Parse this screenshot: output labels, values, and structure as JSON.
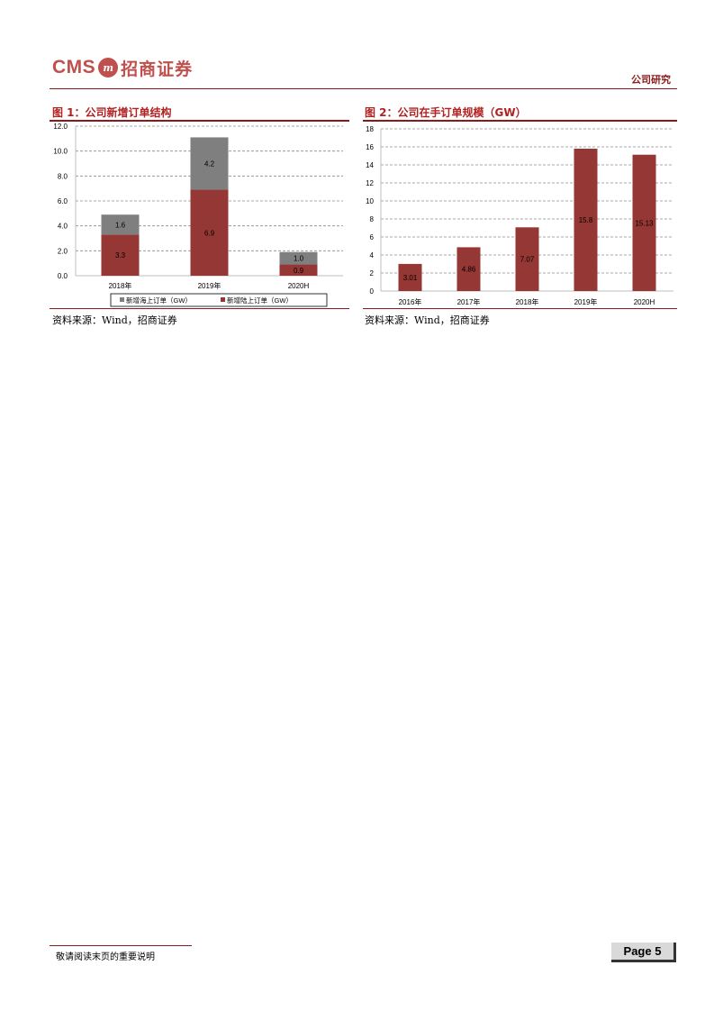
{
  "header": {
    "logo_latin": "CMS",
    "logo_cn": "招商证券",
    "tag": "公司研究"
  },
  "figures": [
    {
      "title": "图 1：公司新增订单结构",
      "source": "资料来源：Wind，招商证券",
      "chart_data": {
        "type": "bar",
        "stacked": true,
        "categories": [
          "2018年",
          "2019年",
          "2020H"
        ],
        "series": [
          {
            "name": "新增陆上订单（GW）",
            "values": [
              3.3,
              6.9,
              0.9
            ],
            "color": "#953735"
          },
          {
            "name": "新增海上订单（GW）",
            "values": [
              1.6,
              4.2,
              1.0
            ],
            "color": "#7f7f7f"
          }
        ],
        "data_labels": [
          [
            "3.3",
            "6.9",
            "0.9"
          ],
          [
            "1.6",
            "4.2",
            "1.0"
          ]
        ],
        "ylim": [
          0,
          12
        ],
        "yticks": [
          "0.0",
          "2.0",
          "4.0",
          "6.0",
          "8.0",
          "10.0",
          "12.0"
        ],
        "grid": true,
        "legend_position": "bottom",
        "legend_order": [
          "新增海上订单（GW）",
          "新增陆上订单（GW）"
        ]
      }
    },
    {
      "title": "图 2：公司在手订单规模（GW）",
      "source": "资料来源：Wind，招商证券",
      "chart_data": {
        "type": "bar",
        "categories": [
          "2016年",
          "2017年",
          "2018年",
          "2019年",
          "2020H"
        ],
        "values": [
          3.01,
          4.86,
          7.07,
          15.8,
          15.13
        ],
        "data_labels": [
          "3.01",
          "4.86",
          "7.07",
          "15.8",
          "15.13"
        ],
        "color": "#953735",
        "ylim": [
          0,
          18
        ],
        "yticks": [
          "0",
          "2",
          "4",
          "6",
          "8",
          "10",
          "12",
          "14",
          "16",
          "18"
        ],
        "grid": true
      }
    }
  ],
  "footer": {
    "note": "敬请阅读末页的重要说明",
    "page_label": "Page 5"
  },
  "colors": {
    "brand": "#c0504d",
    "rule": "#8b1a1a",
    "title": "#b22222"
  }
}
